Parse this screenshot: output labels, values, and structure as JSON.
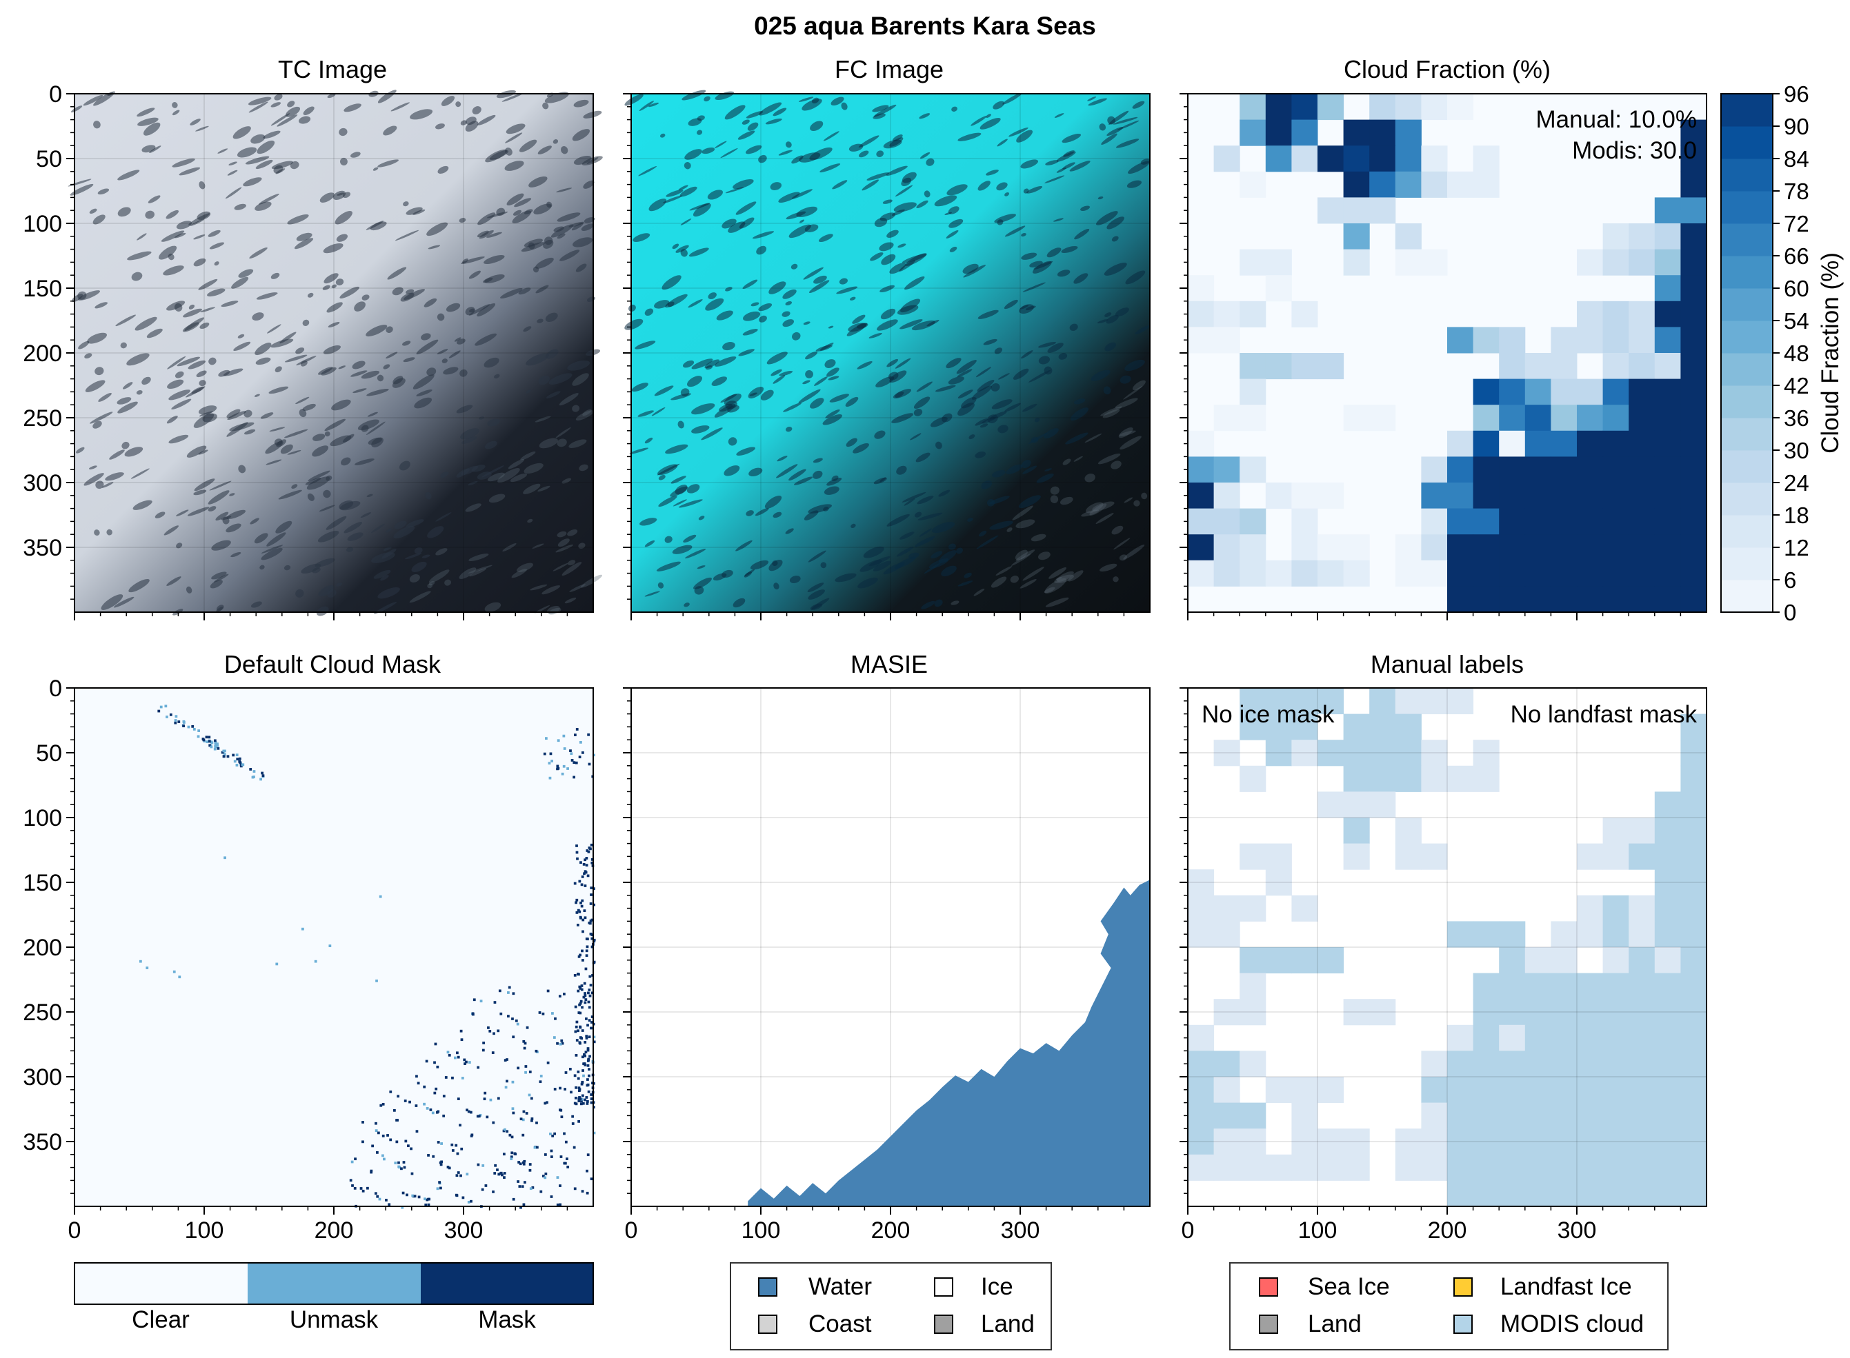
{
  "figure": {
    "title": "025 aqua Barents Kara Seas"
  },
  "colors": {
    "blues_ramp": [
      "#f7fbff",
      "#eef5fc",
      "#e3eef9",
      "#d9e8f5",
      "#cde0f1",
      "#bfd8ed",
      "#b0d2e7",
      "#9ac8e0",
      "#84bcdb",
      "#6aaed6",
      "#58a1cf",
      "#4292c6",
      "#3282be",
      "#2171b5",
      "#1562a9",
      "#08519c",
      "#084084",
      "#08306b"
    ],
    "mask_clear": "#f7fbff",
    "mask_unmask": "#6aaed6",
    "mask_mask": "#08306b",
    "masie_water": "#4682b4",
    "modis_cloud": "#b3d4e8",
    "sea_ice": "#ff6666",
    "landfast_ice": "#ffcc33",
    "land": "#a0a0a0",
    "coast": "#d3d3d3"
  },
  "chart_data": [
    {
      "panel": "tc",
      "type": "heatmap",
      "title": "TC Image",
      "content": "true color satellite image",
      "xlim": [
        0,
        400
      ],
      "ylim": [
        400,
        0
      ],
      "yticks": [
        0,
        50,
        100,
        150,
        200,
        250,
        300,
        350
      ]
    },
    {
      "panel": "fc",
      "type": "heatmap",
      "title": "FC Image",
      "content": "false color satellite image",
      "xlim": [
        0,
        400
      ],
      "ylim": [
        400,
        0
      ]
    },
    {
      "panel": "cf",
      "type": "heatmap",
      "title": "Cloud Fraction (%)",
      "annotation": [
        "Manual: 10.0%",
        "Modis: 30.0"
      ],
      "xlim": [
        0,
        400
      ],
      "ylim": [
        400,
        0
      ],
      "yticks": [
        0,
        50,
        100,
        150,
        200,
        250,
        300,
        350
      ],
      "colorbar": {
        "label": "Cloud Fraction (%)",
        "ticks": [
          0,
          6,
          12,
          18,
          24,
          30,
          36,
          42,
          48,
          54,
          60,
          66,
          72,
          78,
          84,
          90,
          96
        ],
        "range": [
          0,
          96
        ]
      }
    },
    {
      "panel": "dcm",
      "type": "heatmap",
      "title": "Default Cloud Mask",
      "xlim": [
        0,
        400
      ],
      "ylim": [
        400,
        0
      ],
      "xticks": [
        0,
        100,
        200,
        300
      ],
      "yticks": [
        0,
        50,
        100,
        150,
        200,
        250,
        300,
        350
      ],
      "legend": [
        "Clear",
        "Unmask",
        "Mask"
      ]
    },
    {
      "panel": "masie",
      "type": "area",
      "title": "MASIE",
      "xlim": [
        0,
        400
      ],
      "ylim": [
        400,
        0
      ],
      "xticks": [
        0,
        100,
        200,
        300
      ],
      "water_boundary": [
        [
          90,
          396
        ],
        [
          100,
          386
        ],
        [
          110,
          394
        ],
        [
          120,
          384
        ],
        [
          130,
          392
        ],
        [
          140,
          382
        ],
        [
          150,
          390
        ],
        [
          160,
          380
        ],
        [
          170,
          372
        ],
        [
          180,
          364
        ],
        [
          190,
          356
        ],
        [
          200,
          346
        ],
        [
          210,
          336
        ],
        [
          220,
          326
        ],
        [
          230,
          318
        ],
        [
          240,
          308
        ],
        [
          250,
          299
        ],
        [
          260,
          304
        ],
        [
          270,
          294
        ],
        [
          280,
          300
        ],
        [
          290,
          288
        ],
        [
          300,
          278
        ],
        [
          310,
          282
        ],
        [
          320,
          274
        ],
        [
          330,
          280
        ],
        [
          340,
          268
        ],
        [
          350,
          258
        ],
        [
          355,
          246
        ],
        [
          360,
          236
        ],
        [
          365,
          226
        ],
        [
          370,
          216
        ],
        [
          362,
          205
        ],
        [
          368,
          190
        ],
        [
          362,
          180
        ],
        [
          372,
          166
        ],
        [
          380,
          154
        ],
        [
          385,
          160
        ],
        [
          392,
          152
        ],
        [
          400,
          148
        ],
        [
          400,
          400
        ],
        [
          90,
          400
        ]
      ],
      "legend": [
        "Water",
        "Ice",
        "Coast",
        "Land"
      ]
    },
    {
      "panel": "ml",
      "type": "heatmap",
      "title": "Manual labels",
      "annotation": [
        "No ice mask",
        "No landfast mask"
      ],
      "xlim": [
        0,
        400
      ],
      "ylim": [
        400,
        0
      ],
      "xticks": [
        0,
        100,
        200,
        300
      ],
      "legend": [
        "Sea Ice",
        "Landfast Ice",
        "Land",
        "MODIS cloud"
      ]
    }
  ]
}
